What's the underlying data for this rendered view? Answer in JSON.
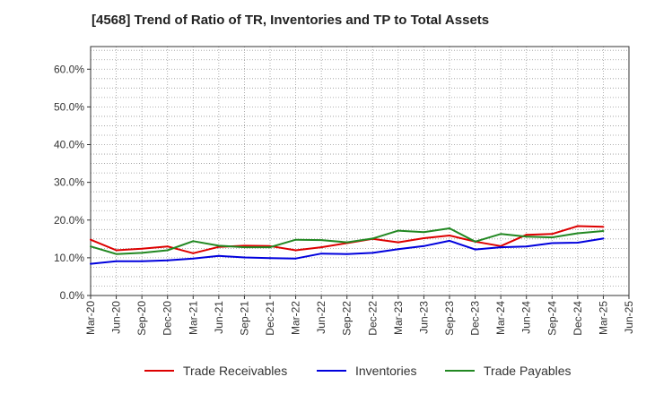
{
  "chart_data": {
    "type": "line",
    "title": "[4568]  Trend of Ratio of TR, Inventories and TP to Total Assets",
    "xlabel": "",
    "ylabel": "",
    "x": [
      "Mar-20",
      "Jun-20",
      "Sep-20",
      "Dec-20",
      "Mar-21",
      "Jun-21",
      "Sep-21",
      "Dec-21",
      "Mar-22",
      "Jun-22",
      "Sep-22",
      "Dec-22",
      "Mar-23",
      "Jun-23",
      "Sep-23",
      "Dec-23",
      "Mar-24",
      "Jun-24",
      "Sep-24",
      "Dec-24",
      "Mar-25"
    ],
    "x_tick_labels": [
      "Mar-20",
      "Jun-20",
      "Sep-20",
      "Dec-20",
      "Mar-21",
      "Jun-21",
      "Sep-21",
      "Dec-21",
      "Mar-22",
      "Jun-22",
      "Sep-22",
      "Dec-22",
      "Mar-23",
      "Jun-23",
      "Sep-23",
      "Dec-23",
      "Mar-24",
      "Jun-24",
      "Sep-24",
      "Dec-24",
      "Mar-25",
      "Jun-25"
    ],
    "y_tick_labels": [
      "0.0%",
      "10.0%",
      "20.0%",
      "30.0%",
      "40.0%",
      "50.0%",
      "60.0%"
    ],
    "ylim": [
      0,
      66
    ],
    "y_unit": "%",
    "grid": true,
    "legend_position": "bottom",
    "series": [
      {
        "name": "Trade Receivables",
        "color": "#dd0000",
        "values": [
          14.8,
          12.0,
          12.4,
          13.0,
          11.2,
          12.9,
          13.2,
          13.1,
          12.0,
          12.8,
          13.9,
          15.0,
          14.1,
          15.2,
          15.9,
          14.3,
          13.1,
          16.1,
          16.3,
          18.4,
          18.2
        ]
      },
      {
        "name": "Inventories",
        "color": "#0000dd",
        "values": [
          8.4,
          9.1,
          9.1,
          9.3,
          9.8,
          10.5,
          10.1,
          9.9,
          9.8,
          11.1,
          11.0,
          11.3,
          12.3,
          13.1,
          14.5,
          12.2,
          12.8,
          13.0,
          13.9,
          14.0,
          15.1
        ]
      },
      {
        "name": "Trade Payables",
        "color": "#228822",
        "values": [
          13.0,
          11.0,
          11.3,
          12.0,
          14.4,
          13.2,
          12.8,
          12.8,
          14.8,
          14.7,
          14.1,
          15.1,
          17.2,
          16.8,
          17.8,
          14.3,
          16.3,
          15.6,
          15.4,
          16.5,
          17.1
        ]
      }
    ]
  }
}
